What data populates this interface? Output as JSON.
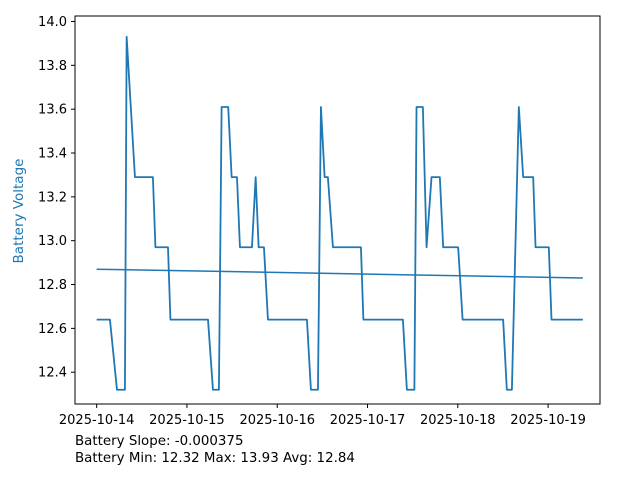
{
  "figure": {
    "ylabel": "Battery Voltage",
    "ylabel_color": "#1f77b4",
    "line_color": "#1f77b4",
    "axis_color": "#000000",
    "background": "#ffffff",
    "annotation_line1": "Battery Slope: -0.000375",
    "annotation_line2": "Battery Min: 12.32 Max: 13.93 Avg: 12.84"
  },
  "chart_data": {
    "type": "line",
    "title": "",
    "xlabel": "",
    "ylabel": "Battery Voltage",
    "grid": false,
    "legend": "none",
    "x_unit": "days since 2025-10-14 00:00",
    "x_tick_values": [
      0,
      1,
      2,
      3,
      4,
      5
    ],
    "x_tick_labels": [
      "2025-10-14",
      "2025-10-15",
      "2025-10-16",
      "2025-10-17",
      "2025-10-18",
      "2025-10-19"
    ],
    "y_tick_values": [
      12.4,
      12.6,
      12.8,
      13.0,
      13.2,
      13.4,
      13.6,
      13.8,
      14.0
    ],
    "y_tick_labels": [
      "12.4",
      "12.6",
      "12.8",
      "13.0",
      "13.2",
      "13.4",
      "13.6",
      "13.8",
      "14.0"
    ],
    "xlim": [
      -0.24,
      5.575
    ],
    "ylim": [
      12.255,
      14.025
    ],
    "stats": {
      "slope": -0.000375,
      "min": 12.32,
      "max": 13.93,
      "avg": 12.84
    },
    "series": [
      {
        "name": "Battery Voltage",
        "color": "#1f77b4",
        "width": 1.8,
        "points": [
          [
            0.0,
            12.64
          ],
          [
            0.147,
            12.64
          ],
          [
            0.225,
            12.32
          ],
          [
            0.313,
            12.32
          ],
          [
            0.332,
            13.93
          ],
          [
            0.424,
            13.29
          ],
          [
            0.623,
            13.29
          ],
          [
            0.651,
            12.97
          ],
          [
            0.79,
            12.97
          ],
          [
            0.817,
            12.64
          ],
          [
            1.233,
            12.64
          ],
          [
            1.288,
            12.32
          ],
          [
            1.354,
            12.32
          ],
          [
            1.384,
            13.61
          ],
          [
            1.457,
            13.61
          ],
          [
            1.495,
            13.29
          ],
          [
            1.554,
            13.29
          ],
          [
            1.587,
            12.97
          ],
          [
            1.72,
            12.97
          ],
          [
            1.761,
            13.29
          ],
          [
            1.794,
            12.97
          ],
          [
            1.853,
            12.97
          ],
          [
            1.897,
            12.64
          ],
          [
            2.329,
            12.64
          ],
          [
            2.373,
            12.32
          ],
          [
            2.451,
            12.32
          ],
          [
            2.484,
            13.61
          ],
          [
            2.525,
            13.29
          ],
          [
            2.561,
            13.29
          ],
          [
            2.617,
            12.97
          ],
          [
            2.927,
            12.97
          ],
          [
            2.954,
            12.64
          ],
          [
            3.392,
            12.64
          ],
          [
            3.436,
            12.32
          ],
          [
            3.519,
            12.32
          ],
          [
            3.543,
            13.61
          ],
          [
            3.613,
            13.61
          ],
          [
            3.654,
            12.97
          ],
          [
            3.709,
            13.29
          ],
          [
            3.801,
            13.29
          ],
          [
            3.838,
            12.97
          ],
          [
            4.004,
            12.97
          ],
          [
            4.053,
            12.64
          ],
          [
            4.502,
            12.64
          ],
          [
            4.543,
            12.32
          ],
          [
            4.599,
            12.32
          ],
          [
            4.676,
            13.61
          ],
          [
            4.724,
            13.29
          ],
          [
            4.835,
            13.29
          ],
          [
            4.861,
            12.97
          ],
          [
            5.008,
            12.97
          ],
          [
            5.038,
            12.64
          ],
          [
            5.385,
            12.64
          ]
        ]
      },
      {
        "name": "Trend",
        "color": "#1f77b4",
        "width": 1.5,
        "points": [
          [
            0.0,
            12.87
          ],
          [
            5.385,
            12.83
          ]
        ]
      }
    ]
  }
}
